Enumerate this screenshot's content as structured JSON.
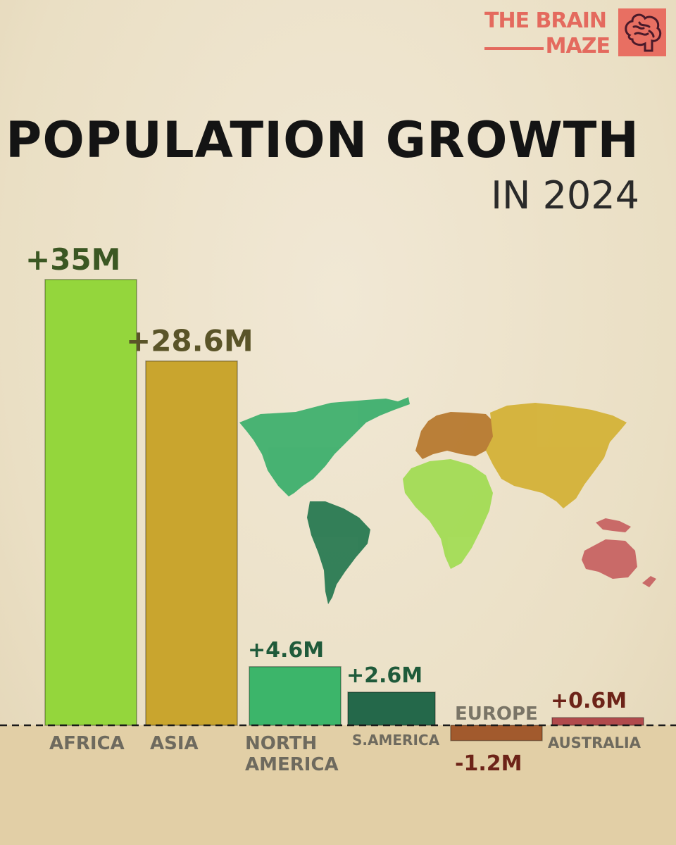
{
  "brand": {
    "line1": "THE BRAIN",
    "line2": "MAZE",
    "icon": "brain-icon",
    "color": "#e46a5e"
  },
  "header": {
    "title": "POPULATION GROWTH",
    "subtitle": "IN 2024"
  },
  "chart_data": {
    "type": "bar",
    "title": "POPULATION GROWTH",
    "subtitle": "IN 2024",
    "categories": [
      "AFRICA",
      "ASIA",
      "NORTH AMERICA",
      "S.AMERICA",
      "EUROPE",
      "AUSTRALIA"
    ],
    "category_lines": [
      [
        "AFRICA"
      ],
      [
        "ASIA"
      ],
      [
        "NORTH",
        "AMERICA"
      ],
      [
        "S.AMERICA"
      ],
      [
        "EUROPE"
      ],
      [
        "AUSTRALIA"
      ]
    ],
    "values": [
      35,
      28.6,
      4.6,
      2.6,
      -1.2,
      0.6
    ],
    "value_labels": [
      "+35M",
      "+28.6M",
      "+4.6M",
      "+2.6M",
      "-1.2M",
      "+0.6M"
    ],
    "colors": [
      "#94d63c",
      "#c9a52e",
      "#3cb56a",
      "#24684a",
      "#a25a2d",
      "#b14a4c"
    ],
    "label_colors": [
      "#3b5723",
      "#5a5428",
      "#1f5a3a",
      "#1f5a3a",
      "#6d2318",
      "#6d2318"
    ],
    "xlabel": "",
    "ylabel": "",
    "baseline": "dashed"
  }
}
